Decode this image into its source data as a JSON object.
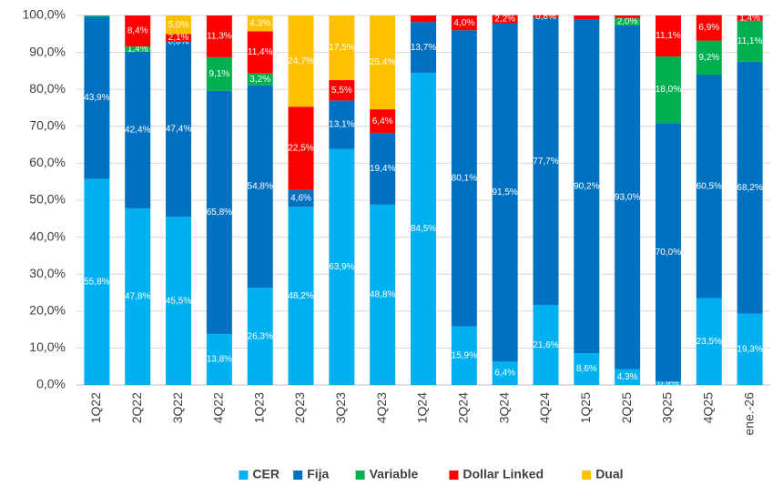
{
  "chart_data": {
    "type": "stacked_bar",
    "categories": [
      "1Q22",
      "2Q22",
      "3Q22",
      "4Q22",
      "1Q23",
      "2Q23",
      "3Q23",
      "4Q23",
      "1Q24",
      "2Q24",
      "3Q24",
      "4Q24",
      "1Q25",
      "2Q25",
      "3Q25",
      "4Q25",
      "ene.-26"
    ],
    "series": [
      {
        "name": "CER",
        "color": "#00b0f0",
        "values": [
          55.8,
          47.8,
          45.5,
          13.8,
          26.3,
          48.2,
          63.9,
          48.8,
          84.5,
          15.9,
          6.4,
          21.6,
          8.6,
          4.3,
          0.9,
          23.5,
          19.3
        ],
        "value_labels": [
          "55,8%",
          "47,8%",
          "45,5%",
          "13,8%",
          "26,3%",
          "48,2%",
          "63,9%",
          "48,8%",
          "84,5%",
          "15,9%",
          "6,4%",
          "21,6%",
          "8,6%",
          "4,3%",
          "0,9%",
          "23,5%",
          "19,3%"
        ]
      },
      {
        "name": "Fija",
        "color": "#0070c0",
        "values": [
          43.9,
          42.4,
          47.4,
          65.8,
          54.8,
          4.6,
          13.1,
          19.4,
          13.7,
          80.1,
          91.5,
          77.7,
          90.2,
          93.0,
          70.0,
          60.5,
          68.2
        ],
        "value_labels": [
          "43,9%",
          "42,4%",
          "47,4%",
          "65,8%",
          "54,8%",
          "4,6%",
          "13,1%",
          "19,4%",
          "13,7%",
          "80,1%",
          "91,5%",
          "77,7%",
          "90,2%",
          "93,0%",
          "70,0%",
          "60,5%",
          "68,2%"
        ]
      },
      {
        "name": "Variable",
        "color": "#00b050",
        "values": [
          0.3,
          1.4,
          0.0,
          9.1,
          3.2,
          0,
          0,
          0,
          0,
          0,
          0,
          0,
          0,
          2.0,
          18.0,
          9.2,
          11.1
        ],
        "value_labels": [
          null,
          "1,4%",
          "0,0%",
          "9,1%",
          "3,2%",
          null,
          null,
          null,
          null,
          null,
          null,
          null,
          null,
          "2,0%",
          "18,0%",
          "9,2%",
          "11,1%"
        ]
      },
      {
        "name": "Dollar Linked",
        "color": "#ff0000",
        "values": [
          0,
          8.4,
          2.1,
          11.3,
          11.4,
          22.5,
          5.5,
          6.4,
          1.8,
          4.0,
          2.2,
          0.8,
          1.2,
          0.7,
          11.1,
          6.9,
          1.4
        ],
        "value_labels": [
          null,
          "8,4%",
          "2,1%",
          "11,3%",
          "11,4%",
          "22,5%",
          "5,5%",
          "6,4%",
          null,
          "4,0%",
          "2,2%",
          "0,8%",
          null,
          null,
          "11,1%",
          "6,9%",
          "1,4%"
        ]
      },
      {
        "name": "Dual",
        "color": "#ffc000",
        "values": [
          0,
          0,
          5.0,
          0,
          4.3,
          24.7,
          17.5,
          25.4,
          0,
          0,
          0,
          0,
          0,
          0,
          0,
          0,
          0
        ],
        "value_labels": [
          null,
          null,
          "5,0%",
          null,
          "4,3%",
          "24,7%",
          "17,5%",
          "25,4%",
          null,
          null,
          null,
          null,
          null,
          null,
          null,
          null,
          null
        ]
      }
    ],
    "ylim": [
      0,
      100
    ],
    "yticks": [
      {
        "value": 0,
        "label": "0,0%"
      },
      {
        "value": 10,
        "label": "10,0%"
      },
      {
        "value": 20,
        "label": "20,0%"
      },
      {
        "value": 30,
        "label": "30,0%"
      },
      {
        "value": 40,
        "label": "40,0%"
      },
      {
        "value": 50,
        "label": "50,0%"
      },
      {
        "value": 60,
        "label": "60,0%"
      },
      {
        "value": 70,
        "label": "70,0%"
      },
      {
        "value": 80,
        "label": "80,0%"
      },
      {
        "value": 90,
        "label": "90,0%"
      },
      {
        "value": 100,
        "label": "100,0%"
      }
    ],
    "grid": true,
    "legend": "bottom"
  }
}
